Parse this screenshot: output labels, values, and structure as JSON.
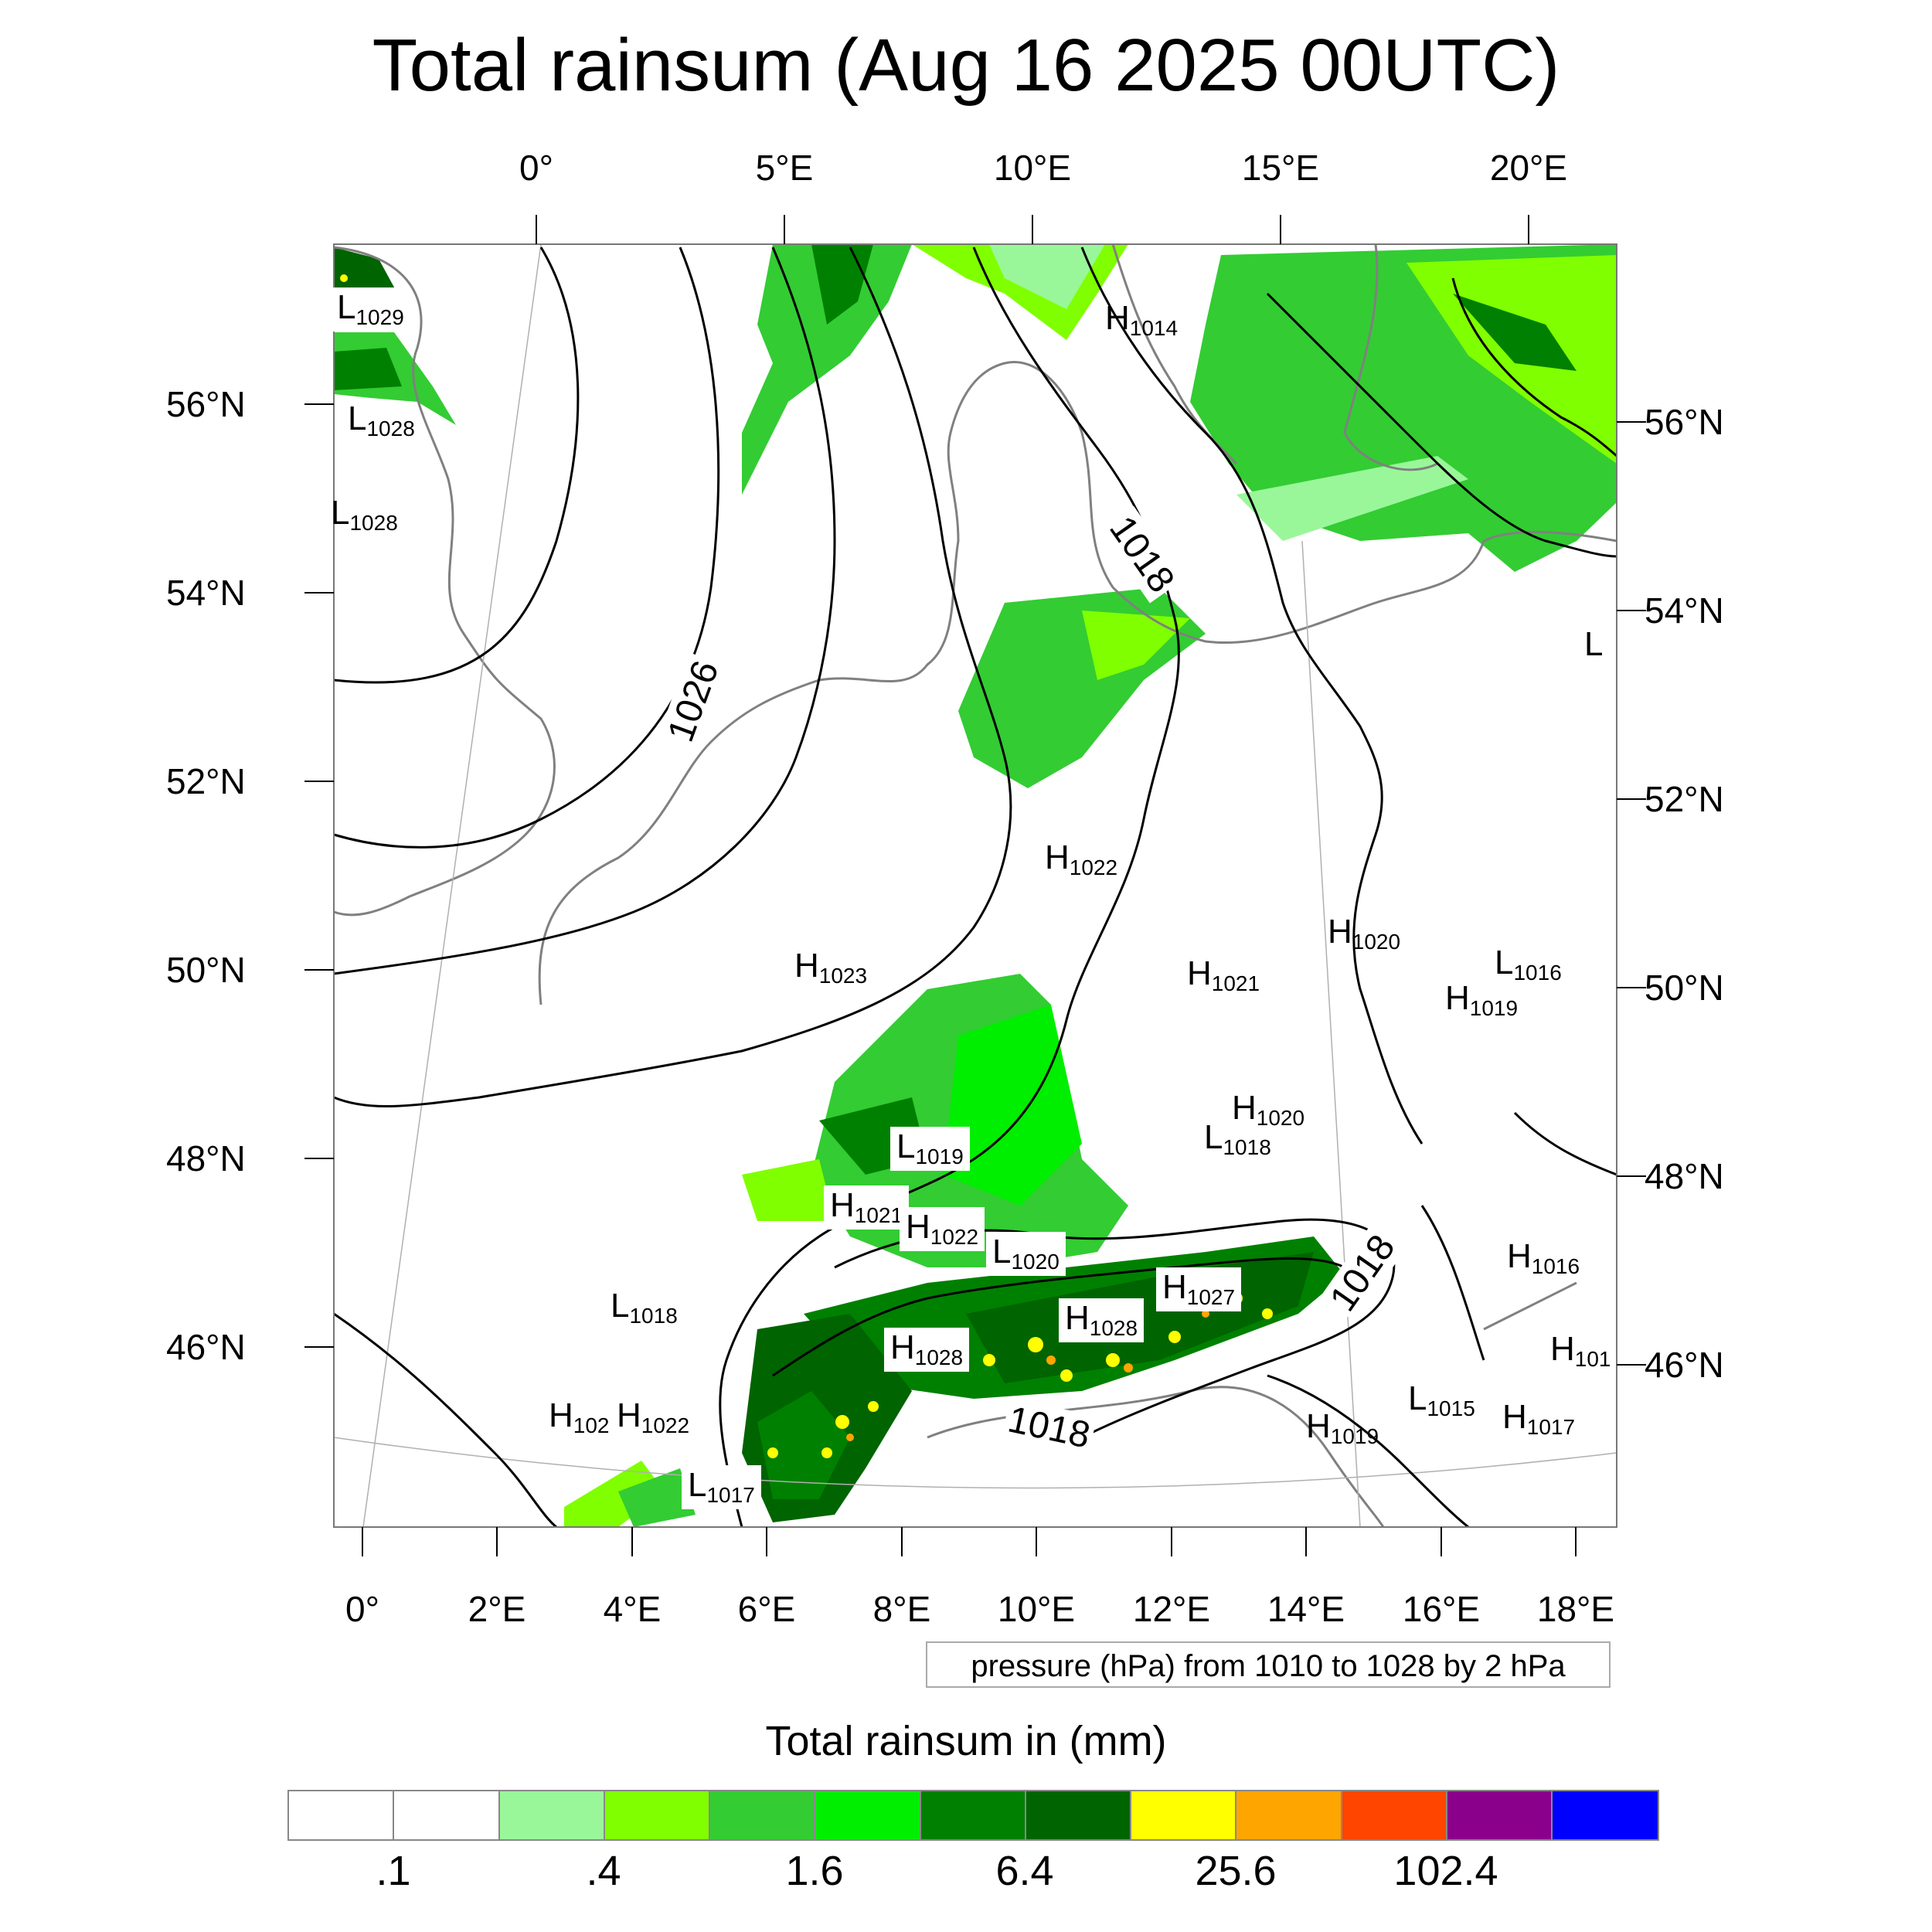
{
  "title": "Total rainsum (Aug 16 2025 00UTC)",
  "top_axis_labels": [
    "0°",
    "5°E",
    "10°E",
    "15°E",
    "20°E"
  ],
  "bottom_axis_labels": [
    "0°",
    "2°E",
    "4°E",
    "6°E",
    "8°E",
    "10°E",
    "12°E",
    "14°E",
    "16°E",
    "18°E"
  ],
  "left_axis_labels": [
    "56°N",
    "54°N",
    "52°N",
    "50°N",
    "48°N",
    "46°N"
  ],
  "right_axis_labels": [
    "56°N",
    "54°N",
    "52°N",
    "50°N",
    "48°N",
    "46°N"
  ],
  "pressure_note": "pressure (hPa) from 1010 to 1028 by 2 hPa",
  "colorbar": {
    "title": "Total rainsum in (mm)",
    "colors": [
      "#ffffff",
      "#ffffff",
      "#99f799",
      "#80ff00",
      "#33cc33",
      "#00ee00",
      "#008000",
      "#006400",
      "#ffff00",
      "#ffa500",
      "#ff4500",
      "#8b008b",
      "#0000ff"
    ],
    "labels": [
      ".1",
      ".4",
      "1.6",
      "6.4",
      "25.6",
      "102.4"
    ]
  },
  "pressure_centers": [
    {
      "type": "L",
      "value": "1029"
    },
    {
      "type": "L",
      "value": "1028"
    },
    {
      "type": "L",
      "value": "1028"
    },
    {
      "type": "H",
      "value": "1014"
    },
    {
      "type": "L",
      "value": ""
    },
    {
      "type": "H",
      "value": "1022"
    },
    {
      "type": "H",
      "value": "1020"
    },
    {
      "type": "L",
      "value": "1016"
    },
    {
      "type": "H",
      "value": "1023"
    },
    {
      "type": "H",
      "value": "1021"
    },
    {
      "type": "H",
      "value": "1019"
    },
    {
      "type": "H",
      "value": "1020"
    },
    {
      "type": "L",
      "value": "1018"
    },
    {
      "type": "L",
      "value": "1019"
    },
    {
      "type": "H",
      "value": "1021"
    },
    {
      "type": "H",
      "value": "1022"
    },
    {
      "type": "L",
      "value": "1020"
    },
    {
      "type": "H",
      "value": "1027"
    },
    {
      "type": "H",
      "value": "1028"
    },
    {
      "type": "H",
      "value": "1028"
    },
    {
      "type": "H",
      "value": "1016"
    },
    {
      "type": "L",
      "value": "1018"
    },
    {
      "type": "H",
      "value": "101"
    },
    {
      "type": "H",
      "value": "102"
    },
    {
      "type": "H",
      "value": "1022"
    },
    {
      "type": "L",
      "value": "1017"
    },
    {
      "type": "L",
      "value": "1015"
    },
    {
      "type": "H",
      "value": "1017"
    },
    {
      "type": "H",
      "value": "1019"
    }
  ],
  "contour_labels": [
    "1026",
    "1018",
    "1018",
    "1018"
  ]
}
